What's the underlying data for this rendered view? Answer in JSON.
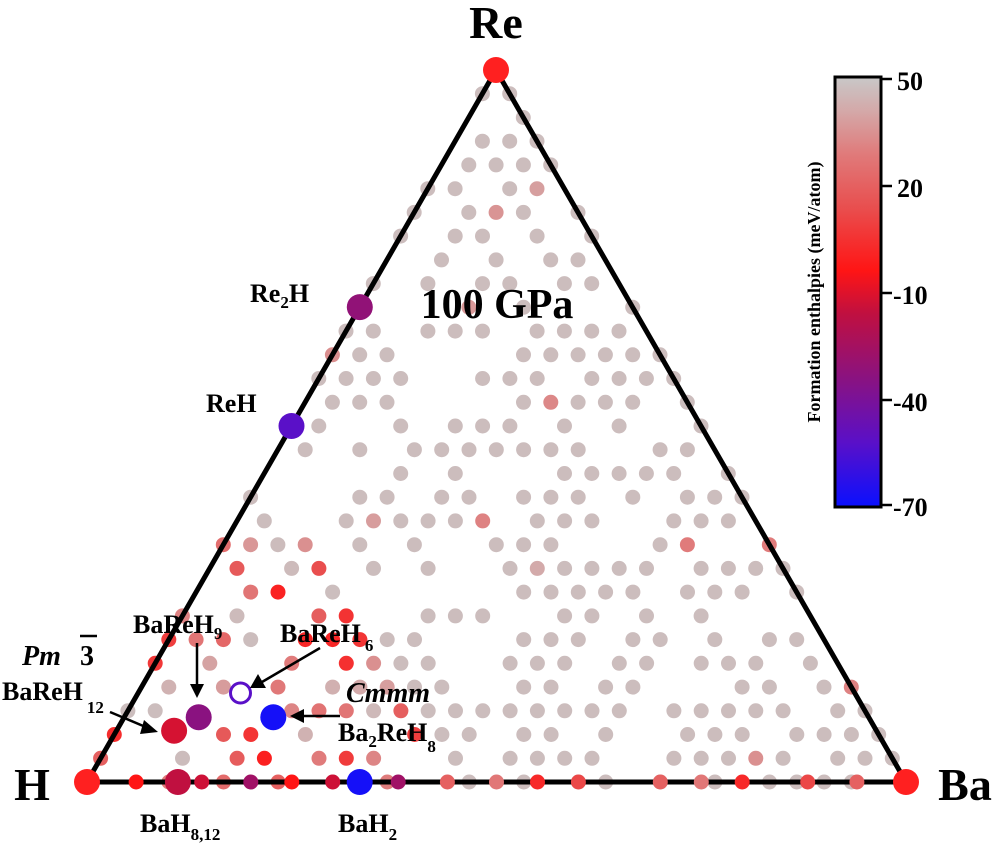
{
  "chart_data": {
    "type": "scatter",
    "subtype": "ternary",
    "title": "100 GPa",
    "vertices": {
      "top": "Re",
      "left": "H",
      "right": "Ba"
    },
    "colorbar": {
      "label": "Formation enthalpies (meV/atom)",
      "ticks": [
        "50",
        "20",
        "-10",
        "-40",
        "-70"
      ],
      "min": -70,
      "max": 50,
      "colors": [
        "#0a10ff",
        "#5a10c8",
        "#8a1280",
        "#c01040",
        "#ff1515",
        "#e85050",
        "#e07a7a",
        "#d4a8a8",
        "#c8c8c8"
      ]
    },
    "labeled_phases": [
      {
        "name": "Re2H",
        "text": "Re",
        "sub": "2",
        "tail": "H",
        "frac": {
          "H": 0.333,
          "Re": 0.667,
          "Ba": 0.0
        },
        "enthalpy": -38
      },
      {
        "name": "ReH",
        "text": "ReH",
        "frac": {
          "H": 0.5,
          "Re": 0.5,
          "Ba": 0.0
        },
        "enthalpy": -55
      },
      {
        "name": "BaReH9",
        "text": "BaReH",
        "sub": "9",
        "frac": {
          "H": 0.818,
          "Re": 0.091,
          "Ba": 0.091
        },
        "enthalpy": -40
      },
      {
        "name": "BaReH6",
        "text": "BaReH",
        "sub": "6",
        "frac": {
          "H": 0.75,
          "Re": 0.125,
          "Ba": 0.125
        },
        "enthalpy": -55
      },
      {
        "name": "Pm-3 BaReH12",
        "text": "BaReH",
        "sub": "12",
        "spacegroup": "Pm",
        "frac": {
          "H": 0.857,
          "Re": 0.071,
          "Ba": 0.071
        },
        "enthalpy": -20
      },
      {
        "name": "Cmmm Ba2ReH8",
        "text": "Ba",
        "sub": "2",
        "tail": "ReH",
        "sub2": "8",
        "spacegroup": "Cmmm",
        "frac": {
          "H": 0.727,
          "Re": 0.091,
          "Ba": 0.182
        },
        "enthalpy": -68
      },
      {
        "name": "BaH8,12",
        "text": "BaH",
        "sub": "8,12",
        "frac": {
          "H": 0.889,
          "Re": 0.0,
          "Ba": 0.111
        },
        "enthalpy": -25
      },
      {
        "name": "BaH2",
        "text": "BaH",
        "sub": "2",
        "frac": {
          "H": 0.667,
          "Re": 0.0,
          "Ba": 0.333
        },
        "enthalpy": -68
      }
    ],
    "grid_points_note": "Hundreds of candidate compositions (mostly gray, above hull); reddish points near H-rich corner"
  }
}
